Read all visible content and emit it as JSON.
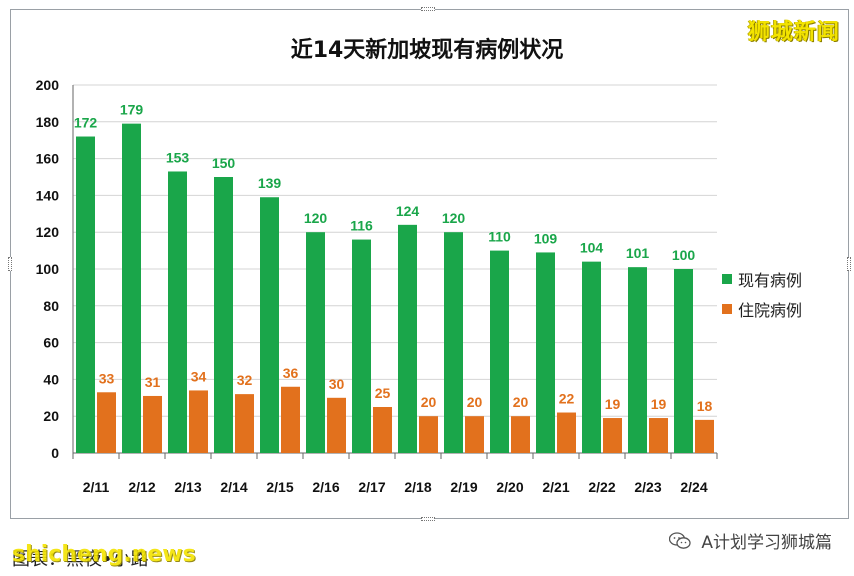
{
  "watermark_top": "狮城新闻",
  "footer": {
    "left_text": "图表：黑夜•小路",
    "site": "shicheng.news",
    "account": "A计划学习狮城篇",
    "account_icon": "wechat-icon"
  },
  "colors": {
    "current": "#1aa64a",
    "hospital": "#e2711d"
  },
  "chart_data": {
    "type": "bar",
    "title": "近14天新加坡现有病例状况",
    "categories": [
      "2/11",
      "2/12",
      "2/13",
      "2/14",
      "2/15",
      "2/16",
      "2/17",
      "2/18",
      "2/19",
      "2/20",
      "2/21",
      "2/22",
      "2/23",
      "2/24"
    ],
    "series": [
      {
        "name": "现有病例",
        "values": [
          172,
          179,
          153,
          150,
          139,
          120,
          116,
          124,
          120,
          110,
          109,
          104,
          101,
          100
        ]
      },
      {
        "name": "住院病例",
        "values": [
          33,
          31,
          34,
          32,
          36,
          30,
          25,
          20,
          20,
          20,
          22,
          19,
          19,
          18
        ]
      }
    ],
    "ylim": [
      0,
      200
    ],
    "yticks": [
      0,
      20,
      40,
      60,
      80,
      100,
      120,
      140,
      160,
      180,
      200
    ],
    "grid": true,
    "legend": "right"
  }
}
